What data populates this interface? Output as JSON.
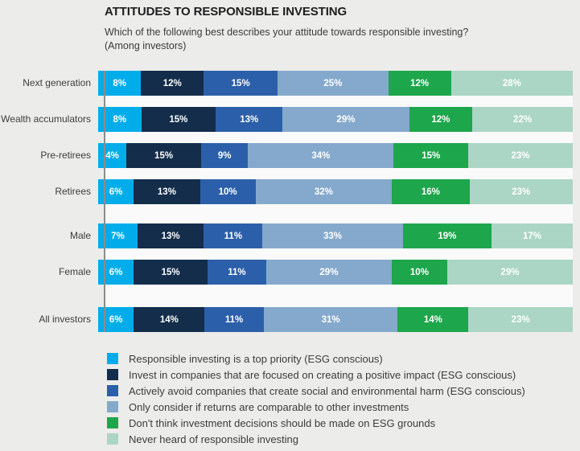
{
  "header": {
    "title": "ATTITUDES TO RESPONSIBLE INVESTING",
    "subtitle": "Which of the following best describes your attitude towards responsible investing?",
    "subtitle2": "(Among investors)"
  },
  "colors": {
    "background": "#ECECEA",
    "plot_background": "#FAFAFA",
    "axis_line": "#8C8C8C",
    "segment_value_text": "#FFFFFF",
    "category_label_text": "#3D3D3D",
    "legend_text": "#3C3C3C"
  },
  "chart_data": {
    "type": "bar",
    "orientation": "horizontal",
    "stacked": true,
    "value_unit": "%",
    "legend_position": "bottom",
    "xlim": [
      0,
      100
    ],
    "categories": [
      "Next generation",
      "Wealth accumulators",
      "Pre-retirees",
      "Retirees",
      "Male",
      "Female",
      "All investors"
    ],
    "series": [
      {
        "name": "Responsible investing is a top priority (ESG conscious)",
        "color": "#00ADEA",
        "values": [
          8,
          8,
          4,
          6,
          7,
          6,
          6
        ]
      },
      {
        "name": "Invest in companies that are focused on creating a positive impact (ESG conscious)",
        "color": "#132D4B",
        "values": [
          12,
          15,
          15,
          13,
          13,
          15,
          14
        ]
      },
      {
        "name": "Actively avoid companies that create social and environmental harm (ESG conscious)",
        "color": "#2C5FA9",
        "values": [
          15,
          13,
          9,
          10,
          11,
          11,
          11
        ]
      },
      {
        "name": "Only consider if returns are comparable to other investments",
        "color": "#85A9CC",
        "values": [
          25,
          29,
          34,
          32,
          33,
          29,
          31
        ]
      },
      {
        "name": "Don't think investment decisions should be made on ESG grounds",
        "color": "#1EA64C",
        "values": [
          12,
          12,
          15,
          16,
          19,
          10,
          14
        ]
      },
      {
        "name": "Never heard of responsible investing",
        "color": "#ABD6C5",
        "values": [
          28,
          22,
          23,
          23,
          17,
          29,
          23
        ]
      }
    ]
  }
}
